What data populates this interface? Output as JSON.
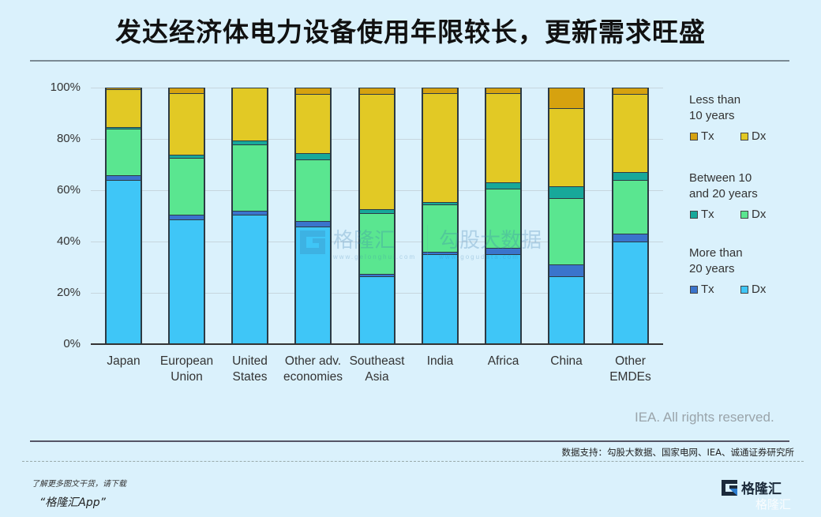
{
  "header": {
    "title": "发达经济体电力设备使用年限较长，更新需求旺盛"
  },
  "chart_data": {
    "type": "bar",
    "stacked": true,
    "normalized": true,
    "title": "发达经济体电力设备使用年限较长，更新需求旺盛",
    "xlabel": "",
    "ylabel": "",
    "ylim": [
      0,
      100
    ],
    "y_ticks": [
      "0%",
      "20%",
      "40%",
      "60%",
      "80%",
      "100%"
    ],
    "grid": true,
    "legend_position": "right",
    "categories": [
      "Japan",
      "European Union",
      "United States",
      "Other adv. economies",
      "Southeast Asia",
      "India",
      "Africa",
      "China",
      "Other EMDEs"
    ],
    "category_labels": [
      [
        "Japan"
      ],
      [
        "European",
        "Union"
      ],
      [
        "United",
        "States"
      ],
      [
        "Other adv.",
        "economies"
      ],
      [
        "Southeast",
        "Asia"
      ],
      [
        "India"
      ],
      [
        "Africa"
      ],
      [
        "China"
      ],
      [
        "Other",
        "EMDEs"
      ]
    ],
    "series": [
      {
        "name": "More than 20 years - Dx",
        "group": "More than 20 years",
        "short": "Dx",
        "color": "#3fc6f7",
        "values": [
          64,
          48.5,
          50.5,
          46,
          26.5,
          35,
          35,
          26.5,
          40
        ]
      },
      {
        "name": "More than 20 years - Tx",
        "group": "More than 20 years",
        "short": "Tx",
        "color": "#3a74cc",
        "values": [
          2,
          2,
          1.5,
          2,
          1,
          1,
          2.5,
          4.5,
          3
        ]
      },
      {
        "name": "Between 10 and 20 years - Dx",
        "group": "Between 10 and 20 years",
        "short": "Dx",
        "color": "#5ae690",
        "values": [
          18,
          22,
          26,
          24,
          23.5,
          18.5,
          23,
          26,
          21
        ]
      },
      {
        "name": "Between 10 and 20 years - Tx",
        "group": "Between 10 and 20 years",
        "short": "Tx",
        "color": "#17a89a",
        "values": [
          0.5,
          1.5,
          1.5,
          2.5,
          1.5,
          1,
          2.5,
          4.5,
          3
        ]
      },
      {
        "name": "Less than 10 years - Dx",
        "group": "Less than 10 years",
        "short": "Dx",
        "color": "#e2c925",
        "values": [
          15,
          24,
          20.5,
          23,
          45,
          42.5,
          35,
          30.5,
          30.5
        ]
      },
      {
        "name": "Less than 10 years - Tx",
        "group": "Less than 10 years",
        "short": "Tx",
        "color": "#d6a20f",
        "values": [
          0.5,
          2,
          0,
          2.5,
          2.5,
          2,
          2,
          8,
          2.5
        ]
      }
    ],
    "legend": [
      {
        "heading": [
          "Less than",
          "10 years"
        ],
        "items": [
          {
            "label": "Tx",
            "color": "#d6a20f"
          },
          {
            "label": "Dx",
            "color": "#e2c925"
          }
        ]
      },
      {
        "heading": [
          "Between 10",
          "and 20 years"
        ],
        "items": [
          {
            "label": "Tx",
            "color": "#17a89a"
          },
          {
            "label": "Dx",
            "color": "#5ae690"
          }
        ]
      },
      {
        "heading": [
          "More than",
          "20 years"
        ],
        "items": [
          {
            "label": "Tx",
            "color": "#3a74cc"
          },
          {
            "label": "Dx",
            "color": "#3fc6f7"
          }
        ]
      }
    ],
    "annotations": [
      "IEA. All rights reserved."
    ]
  },
  "footer": {
    "credit": "IEA. All rights reserved.",
    "source": "数据支持：勾股大数据、国家电网、IEA、诚通证券研究所",
    "promo_line1": "了解更多图文干货，请下载",
    "promo_line2": "“格隆汇App”",
    "logo_text": "格隆汇",
    "logo_ghost": "格隆汇"
  },
  "watermark": {
    "brand1": "格隆汇",
    "brand1_url": "www.gelonghui.com",
    "brand2": "勾股大数据",
    "brand2_url": "www.gogudata.com"
  }
}
